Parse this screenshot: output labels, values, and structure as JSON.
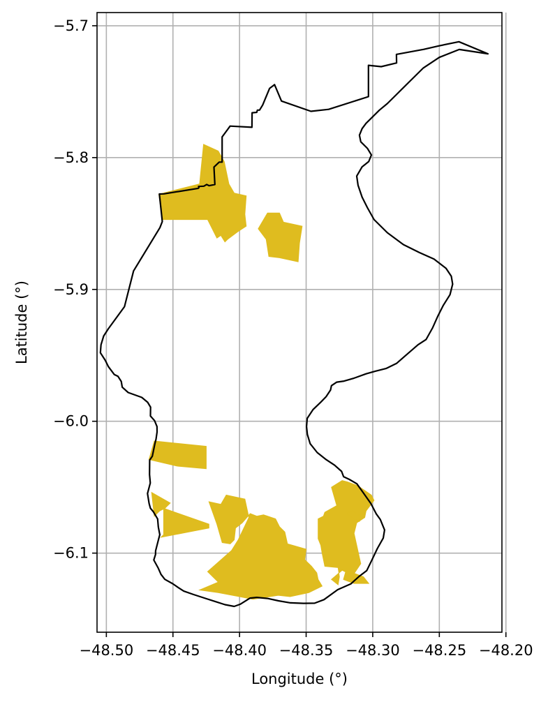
{
  "chart_data": {
    "type": "map",
    "xlabel": "Longitude (°)",
    "ylabel": "Latitude (°)",
    "xlim": [
      -48.507,
      -48.203
    ],
    "ylim": [
      -6.16,
      -5.69
    ],
    "x_ticks": [
      -48.5,
      -48.45,
      -48.4,
      -48.35,
      -48.3,
      -48.25,
      -48.2
    ],
    "x_tick_labels": [
      "−48.50",
      "−48.45",
      "−48.40",
      "−48.35",
      "−48.30",
      "−48.25",
      "−48.20"
    ],
    "y_ticks": [
      -5.7,
      -5.8,
      -5.9,
      -6.0,
      -6.1
    ],
    "y_tick_labels": [
      "−5.7",
      "−5.8",
      "−5.9",
      "−6.0",
      "−6.1"
    ],
    "grid": true,
    "colors": {
      "boundary": "#000000",
      "fill": "#dfbc1f",
      "grid": "#b0b0b0"
    },
    "boundary": [
      [
        -48.2135,
        -5.7213
      ],
      [
        -48.2353,
        -5.7121
      ],
      [
        -48.2505,
        -5.7153
      ],
      [
        -48.2616,
        -5.7179
      ],
      [
        -48.2822,
        -5.7217
      ],
      [
        -48.2821,
        -5.7282
      ],
      [
        -48.2936,
        -5.731
      ],
      [
        -48.3032,
        -5.73
      ],
      [
        -48.3032,
        -5.7538
      ],
      [
        -48.3331,
        -5.7634
      ],
      [
        -48.3464,
        -5.7649
      ],
      [
        -48.3685,
        -5.7571
      ],
      [
        -48.3737,
        -5.7447
      ],
      [
        -48.3775,
        -5.7476
      ],
      [
        -48.3826,
        -5.7601
      ],
      [
        -48.385,
        -5.764
      ],
      [
        -48.3866,
        -5.764
      ],
      [
        -48.3871,
        -5.7657
      ],
      [
        -48.3906,
        -5.766
      ],
      [
        -48.3907,
        -5.777
      ],
      [
        -48.4071,
        -5.7761
      ],
      [
        -48.4089,
        -5.7786
      ],
      [
        -48.4131,
        -5.7843
      ],
      [
        -48.4131,
        -5.8034
      ],
      [
        -48.4153,
        -5.8034
      ],
      [
        -48.4192,
        -5.8072
      ],
      [
        -48.4185,
        -5.8204
      ],
      [
        -48.4228,
        -5.8213
      ],
      [
        -48.4247,
        -5.8204
      ],
      [
        -48.4268,
        -5.8217
      ],
      [
        -48.4308,
        -5.8219
      ],
      [
        -48.4305,
        -5.8228
      ],
      [
        -48.4311,
        -5.8233
      ],
      [
        -48.4568,
        -5.8275
      ],
      [
        -48.4602,
        -5.8276
      ],
      [
        -48.458,
        -5.8485
      ],
      [
        -48.4598,
        -5.8531
      ],
      [
        -48.4796,
        -5.886
      ],
      [
        -48.4864,
        -5.9131
      ],
      [
        -48.4985,
        -5.9298
      ],
      [
        -48.502,
        -5.9353
      ],
      [
        -48.504,
        -5.942
      ],
      [
        -48.5045,
        -5.948
      ],
      [
        -48.5008,
        -5.9538
      ],
      [
        -48.4985,
        -5.9585
      ],
      [
        -48.494,
        -5.9646
      ],
      [
        -48.4913,
        -5.9659
      ],
      [
        -48.4888,
        -5.9698
      ],
      [
        -48.4881,
        -5.9741
      ],
      [
        -48.4836,
        -5.9782
      ],
      [
        -48.4734,
        -5.9819
      ],
      [
        -48.469,
        -5.9856
      ],
      [
        -48.4668,
        -5.9893
      ],
      [
        -48.4669,
        -5.996
      ],
      [
        -48.4638,
        -5.9995
      ],
      [
        -48.462,
        -6.004
      ],
      [
        -48.4619,
        -6.0081
      ],
      [
        -48.4627,
        -6.0136
      ],
      [
        -48.4635,
        -6.0167
      ],
      [
        -48.4655,
        -6.0265
      ],
      [
        -48.4675,
        -6.0295
      ],
      [
        -48.4676,
        -6.0404
      ],
      [
        -48.467,
        -6.0468
      ],
      [
        -48.4691,
        -6.0548
      ],
      [
        -48.4679,
        -6.0624
      ],
      [
        -48.4669,
        -6.066
      ],
      [
        -48.4648,
        -6.0685
      ],
      [
        -48.4615,
        -6.0741
      ],
      [
        -48.461,
        -6.0802
      ],
      [
        -48.4599,
        -6.086
      ],
      [
        -48.461,
        -6.0902
      ],
      [
        -48.463,
        -6.0983
      ],
      [
        -48.4631,
        -6.101
      ],
      [
        -48.4644,
        -6.1052
      ],
      [
        -48.461,
        -6.1115
      ],
      [
        -48.459,
        -6.1161
      ],
      [
        -48.4561,
        -6.1199
      ],
      [
        -48.4502,
        -6.1232
      ],
      [
        -48.4458,
        -6.1263
      ],
      [
        -48.4419,
        -6.1288
      ],
      [
        -48.4345,
        -6.1314
      ],
      [
        -48.4248,
        -6.1346
      ],
      [
        -48.4186,
        -6.1366
      ],
      [
        -48.4109,
        -6.1391
      ],
      [
        -48.404,
        -6.1404
      ],
      [
        -48.3995,
        -6.1388
      ],
      [
        -48.3921,
        -6.1341
      ],
      [
        -48.3871,
        -6.1336
      ],
      [
        -48.379,
        -6.1344
      ],
      [
        -48.3708,
        -6.1362
      ],
      [
        -48.3618,
        -6.1377
      ],
      [
        -48.352,
        -6.1381
      ],
      [
        -48.3436,
        -6.138
      ],
      [
        -48.3366,
        -6.1353
      ],
      [
        -48.3263,
        -6.1277
      ],
      [
        -48.3165,
        -6.1234
      ],
      [
        -48.3104,
        -6.1178
      ],
      [
        -48.3045,
        -6.1133
      ],
      [
        -48.3007,
        -6.1054
      ],
      [
        -48.2965,
        -6.0965
      ],
      [
        -48.2921,
        -6.0886
      ],
      [
        -48.2911,
        -6.0824
      ],
      [
        -48.2943,
        -6.0745
      ],
      [
        -48.2974,
        -6.0702
      ],
      [
        -48.3014,
        -6.0624
      ],
      [
        -48.3072,
        -6.0541
      ],
      [
        -48.3119,
        -6.0474
      ],
      [
        -48.3176,
        -6.0441
      ],
      [
        -48.3219,
        -6.042
      ],
      [
        -48.3234,
        -6.038
      ],
      [
        -48.3287,
        -6.0333
      ],
      [
        -48.3349,
        -6.0291
      ],
      [
        -48.3417,
        -6.0237
      ],
      [
        -48.347,
        -6.017
      ],
      [
        -48.3491,
        -6.01
      ],
      [
        -48.3497,
        -6.004
      ],
      [
        -48.3492,
        -5.9978
      ],
      [
        -48.3449,
        -5.9912
      ],
      [
        -48.339,
        -5.9855
      ],
      [
        -48.335,
        -5.9813
      ],
      [
        -48.3317,
        -5.9763
      ],
      [
        -48.331,
        -5.973
      ],
      [
        -48.327,
        -5.9703
      ],
      [
        -48.3215,
        -5.9695
      ],
      [
        -48.314,
        -5.9673
      ],
      [
        -48.305,
        -5.964
      ],
      [
        -48.298,
        -5.962
      ],
      [
        -48.29,
        -5.96
      ],
      [
        -48.282,
        -5.956
      ],
      [
        -48.274,
        -5.949
      ],
      [
        -48.266,
        -5.942
      ],
      [
        -48.26,
        -5.938
      ],
      [
        -48.255,
        -5.929
      ],
      [
        -48.251,
        -5.92
      ],
      [
        -48.247,
        -5.912
      ],
      [
        -48.242,
        -5.904
      ],
      [
        -48.24,
        -5.896
      ],
      [
        -48.241,
        -5.89
      ],
      [
        -48.245,
        -5.884
      ],
      [
        -48.254,
        -5.877
      ],
      [
        -48.265,
        -5.872
      ],
      [
        -48.277,
        -5.866
      ],
      [
        -48.289,
        -5.857
      ],
      [
        -48.299,
        -5.847
      ],
      [
        -48.304,
        -5.838
      ],
      [
        -48.308,
        -5.83
      ],
      [
        -48.311,
        -5.821
      ],
      [
        -48.312,
        -5.814
      ],
      [
        -48.308,
        -5.807
      ],
      [
        -48.303,
        -5.803
      ],
      [
        -48.301,
        -5.798
      ],
      [
        -48.304,
        -5.793
      ],
      [
        -48.309,
        -5.788
      ],
      [
        -48.31,
        -5.783
      ],
      [
        -48.308,
        -5.778
      ],
      [
        -48.305,
        -5.774
      ],
      [
        -48.3,
        -5.769
      ],
      [
        -48.295,
        -5.764
      ],
      [
        -48.289,
        -5.759
      ],
      [
        -48.282,
        -5.752
      ],
      [
        -48.273,
        -5.743
      ],
      [
        -48.262,
        -5.732
      ],
      [
        -48.25,
        -5.724
      ],
      [
        -48.235,
        -5.718
      ],
      [
        -48.2135,
        -5.7213
      ]
    ],
    "regions": [
      [
        [
          -48.4606,
          -5.8278
        ],
        [
          -48.43,
          -5.82
        ],
        [
          -48.427,
          -5.79
        ],
        [
          -48.416,
          -5.795
        ],
        [
          -48.4115,
          -5.803
        ],
        [
          -48.408,
          -5.82
        ],
        [
          -48.404,
          -5.827
        ],
        [
          -48.395,
          -5.829
        ],
        [
          -48.396,
          -5.843
        ],
        [
          -48.395,
          -5.852
        ],
        [
          -48.401,
          -5.856
        ],
        [
          -48.409,
          -5.862
        ],
        [
          -48.411,
          -5.864
        ],
        [
          -48.414,
          -5.859
        ],
        [
          -48.417,
          -5.861
        ],
        [
          -48.424,
          -5.847
        ],
        [
          -48.454,
          -5.847
        ],
        [
          -48.458,
          -5.847
        ]
      ],
      [
        [
          -48.379,
          -5.842
        ],
        [
          -48.37,
          -5.842
        ],
        [
          -48.367,
          -5.849
        ],
        [
          -48.353,
          -5.852
        ],
        [
          -48.355,
          -5.865
        ],
        [
          -48.356,
          -5.879
        ],
        [
          -48.37,
          -5.876
        ],
        [
          -48.378,
          -5.875
        ],
        [
          -48.38,
          -5.862
        ],
        [
          -48.386,
          -5.854
        ]
      ],
      [
        [
          -48.464,
          -6.015
        ],
        [
          -48.425,
          -6.019
        ],
        [
          -48.425,
          -6.036
        ],
        [
          -48.447,
          -6.034
        ],
        [
          -48.468,
          -6.029
        ]
      ],
      [
        [
          -48.466,
          -6.054
        ],
        [
          -48.452,
          -6.062
        ],
        [
          -48.456,
          -6.066
        ],
        [
          -48.46,
          -6.068
        ],
        [
          -48.464,
          -6.072
        ]
      ],
      [
        [
          -48.457,
          -6.066
        ],
        [
          -48.423,
          -6.078
        ],
        [
          -48.423,
          -6.081
        ],
        [
          -48.459,
          -6.088
        ],
        [
          -48.457,
          -6.086
        ]
      ],
      [
        [
          -48.423,
          -6.061
        ],
        [
          -48.414,
          -6.063
        ],
        [
          -48.41,
          -6.056
        ],
        [
          -48.396,
          -6.059
        ],
        [
          -48.393,
          -6.073
        ],
        [
          -48.401,
          -6.09
        ],
        [
          -48.406,
          -6.098
        ],
        [
          -48.424,
          -6.114
        ],
        [
          -48.416,
          -6.122
        ],
        [
          -48.43,
          -6.128
        ],
        [
          -48.416,
          -6.13
        ],
        [
          -48.4,
          -6.133
        ],
        [
          -48.39,
          -6.135
        ],
        [
          -48.371,
          -6.132
        ],
        [
          -48.362,
          -6.133
        ],
        [
          -48.348,
          -6.13
        ],
        [
          -48.338,
          -6.125
        ],
        [
          -48.341,
          -6.12
        ],
        [
          -48.342,
          -6.115
        ],
        [
          -48.346,
          -6.11
        ],
        [
          -48.351,
          -6.105
        ],
        [
          -48.35,
          -6.097
        ],
        [
          -48.364,
          -6.093
        ],
        [
          -48.366,
          -6.084
        ],
        [
          -48.37,
          -6.08
        ],
        [
          -48.373,
          -6.074
        ],
        [
          -48.382,
          -6.071
        ],
        [
          -48.387,
          -6.072
        ],
        [
          -48.392,
          -6.07
        ],
        [
          -48.398,
          -6.077
        ],
        [
          -48.403,
          -6.081
        ],
        [
          -48.404,
          -6.09
        ],
        [
          -48.407,
          -6.093
        ],
        [
          -48.413,
          -6.092
        ],
        [
          -48.417,
          -6.078
        ]
      ],
      [
        [
          -48.331,
          -6.05
        ],
        [
          -48.327,
          -6.064
        ],
        [
          -48.336,
          -6.069
        ],
        [
          -48.337,
          -6.072
        ],
        [
          -48.341,
          -6.074
        ],
        [
          -48.341,
          -6.089
        ],
        [
          -48.339,
          -6.094
        ],
        [
          -48.338,
          -6.1
        ],
        [
          -48.336,
          -6.11
        ],
        [
          -48.326,
          -6.111
        ],
        [
          -48.325,
          -6.118
        ],
        [
          -48.326,
          -6.124
        ],
        [
          -48.331,
          -6.12
        ],
        [
          -48.323,
          -6.113
        ],
        [
          -48.315,
          -6.117
        ],
        [
          -48.309,
          -6.108
        ],
        [
          -48.314,
          -6.085
        ],
        [
          -48.312,
          -6.077
        ],
        [
          -48.306,
          -6.073
        ],
        [
          -48.305,
          -6.068
        ],
        [
          -48.299,
          -6.06
        ],
        [
          -48.301,
          -6.056
        ],
        [
          -48.311,
          -6.049
        ],
        [
          -48.319,
          -6.046
        ],
        [
          -48.323,
          -6.045
        ]
      ],
      [
        [
          -48.32,
          -6.07
        ],
        [
          -48.314,
          -6.074
        ],
        [
          -48.31,
          -6.076
        ],
        [
          -48.309,
          -6.072
        ],
        [
          -48.315,
          -6.068
        ]
      ],
      [
        [
          -48.32,
          -6.113
        ],
        [
          -48.307,
          -6.118
        ],
        [
          -48.303,
          -6.123
        ],
        [
          -48.314,
          -6.123
        ],
        [
          -48.322,
          -6.12
        ]
      ]
    ],
    "boundary_line_width": 2.2
  }
}
